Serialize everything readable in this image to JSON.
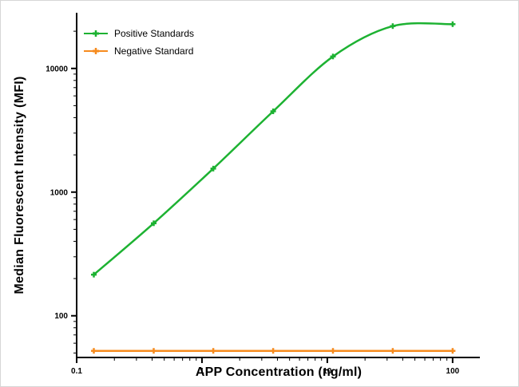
{
  "chart_data": {
    "type": "line",
    "title": "",
    "xlabel": "APP Concentration (ng/ml)",
    "ylabel": "Median Fluorescent Intensity (MFI)",
    "x_scale": "log",
    "y_scale": "log",
    "xlim": [
      0.1,
      165
    ],
    "ylim": [
      46,
      28200
    ],
    "x_ticks": [
      0.1,
      1,
      10,
      100
    ],
    "x_tick_labels": [
      "0.1",
      "1",
      "10",
      "100"
    ],
    "y_ticks": [
      100,
      1000,
      10000
    ],
    "y_tick_labels": [
      "100",
      "1000",
      "10000"
    ],
    "grid": false,
    "legend_position": "top-left",
    "axis_color": "#000000",
    "x": [
      0.137,
      0.412,
      1.23,
      3.7,
      11.1,
      33.3,
      100
    ],
    "series": [
      {
        "name": "Positive Standards",
        "color": "#1db232",
        "marker": "plus",
        "values": [
          215,
          560,
          1550,
          4500,
          12500,
          22000,
          22800
        ]
      },
      {
        "name": "Negative Standard",
        "color": "#f68b1e",
        "marker": "plus",
        "values": [
          52,
          52,
          52,
          52,
          52,
          52,
          52
        ]
      }
    ]
  }
}
